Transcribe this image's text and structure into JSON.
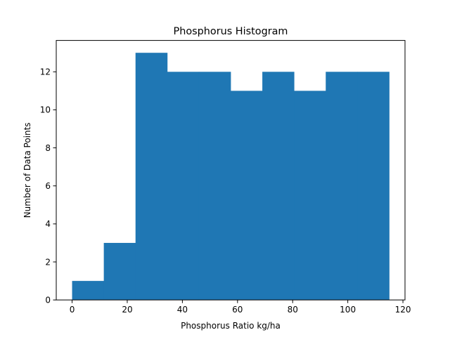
{
  "chart_data": {
    "type": "bar",
    "title": "Phosphorus Histogram",
    "xlabel": "Phosphorus Ratio kg/ha",
    "ylabel": "Number of Data Points",
    "bin_edges": [
      0,
      11.5,
      23,
      34.5,
      46,
      57.5,
      69,
      80.5,
      92,
      103.5,
      115
    ],
    "values": [
      1,
      3,
      13,
      12,
      12,
      11,
      12,
      11,
      12,
      12
    ],
    "xlim": [
      -5.75,
      120.75
    ],
    "ylim": [
      0,
      13.65
    ],
    "xticks": [
      0,
      20,
      40,
      60,
      80,
      100,
      120
    ],
    "yticks": [
      0,
      2,
      4,
      6,
      8,
      10,
      12
    ],
    "grid": false,
    "bar_color": "#1f77b4"
  }
}
